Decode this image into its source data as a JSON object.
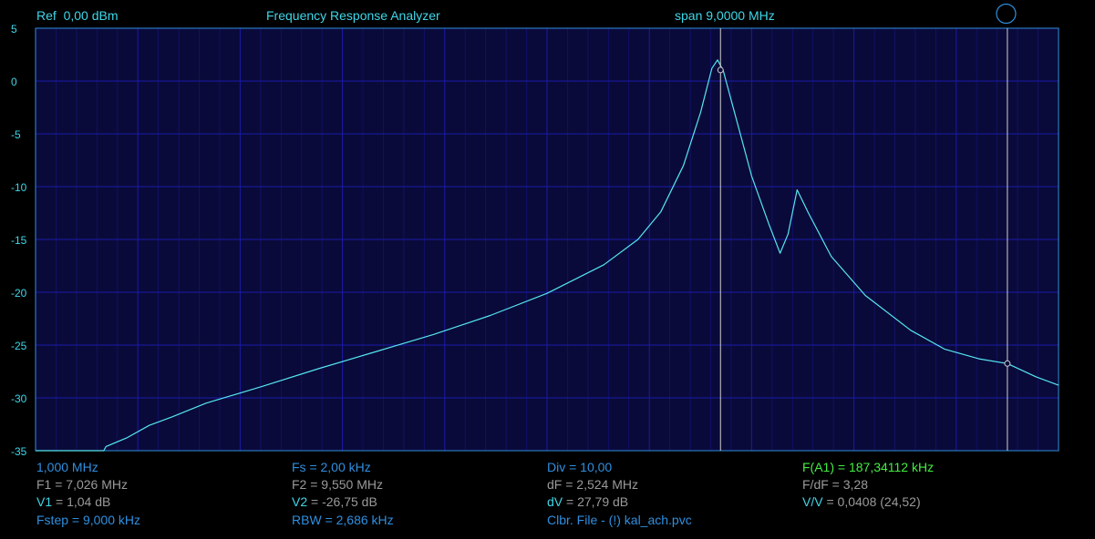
{
  "header": {
    "ref": "Ref  0,00 dBm",
    "title": "Frequency Response Analyzer",
    "span": "span 9,0000 MHz"
  },
  "colors": {
    "background": "#000000",
    "plot_bg": "#0a0a3a",
    "grid": "#1a1aa8",
    "frame": "#2f8fe0",
    "trace": "#55e6f0",
    "marker_line": "#d0d0d0",
    "label_cyan": "#3fd6e8",
    "label_blue": "#2f8fe0",
    "label_gray": "#9a9a9a",
    "label_green": "#44ee44"
  },
  "footer": {
    "col1": {
      "r1": "1,000 MHz",
      "r2": "F1 = 7,026 MHz",
      "r3_label": "V1",
      "r3_value": " = 1,04 dB",
      "r4": "Fstep = 9,000 kHz"
    },
    "col2": {
      "r1": "Fs = 2,00 kHz",
      "r2": "F2 = 9,550 MHz",
      "r3_label": "V2",
      "r3_value": " = -26,75 dB",
      "r4": "RBW = 2,686 kHz"
    },
    "col3": {
      "r1": "Div = 10,00",
      "r2": "dF = 2,524 MHz",
      "r3_label": "dV",
      "r3_value": " = 27,79 dB",
      "r4": "Clbr. File - (!) kal_ach.pvc"
    },
    "col4": {
      "r1": "F(A1) = 187,34112 kHz",
      "r2": "F/dF = 3,28",
      "r3_label": "V/V",
      "r3_value": " = 0,0408 (24,52)"
    }
  },
  "chart_data": {
    "type": "line",
    "xlim": [
      1.0,
      10.0
    ],
    "x_unit": "MHz",
    "ylim": [
      -35,
      5
    ],
    "yticks": [
      5,
      0,
      -5,
      -10,
      -15,
      -20,
      -25,
      -30,
      -35
    ],
    "ytick_labels": [
      "5",
      "0",
      "-5",
      "-10",
      "-15",
      "-20",
      "-25",
      "-30",
      "-35"
    ],
    "grid": true,
    "x_divisions": 10,
    "x_minor_per_div": 5,
    "series": [
      {
        "x": [
          1.0,
          1.3,
          1.6,
          1.62,
          1.8,
          2.0,
          2.2,
          2.5,
          3.0,
          3.5,
          4.0,
          4.5,
          5.0,
          5.5,
          6.0,
          6.3,
          6.5,
          6.7,
          6.85,
          6.95,
          7.0,
          7.05,
          7.15,
          7.3,
          7.45,
          7.55,
          7.62,
          7.7,
          7.8,
          8.0,
          8.3,
          8.7,
          9.0,
          9.3,
          9.55,
          9.8,
          10.0
        ],
        "y": [
          -35.0,
          -35.0,
          -35.0,
          -34.6,
          -33.8,
          -32.6,
          -31.8,
          -30.5,
          -28.9,
          -27.2,
          -25.6,
          -24.0,
          -22.2,
          -20.1,
          -17.4,
          -15.0,
          -12.4,
          -8.0,
          -3.0,
          1.2,
          2.0,
          1.0,
          -3.0,
          -9.0,
          -13.5,
          -16.3,
          -14.5,
          -10.3,
          -12.5,
          -16.6,
          -20.3,
          -23.6,
          -25.4,
          -26.3,
          -26.75,
          -28.0,
          -28.8
        ]
      }
    ],
    "markers": [
      {
        "name": "V1",
        "x": 7.026,
        "y": 1.04
      },
      {
        "name": "V2",
        "x": 9.55,
        "y": -26.75
      }
    ]
  }
}
